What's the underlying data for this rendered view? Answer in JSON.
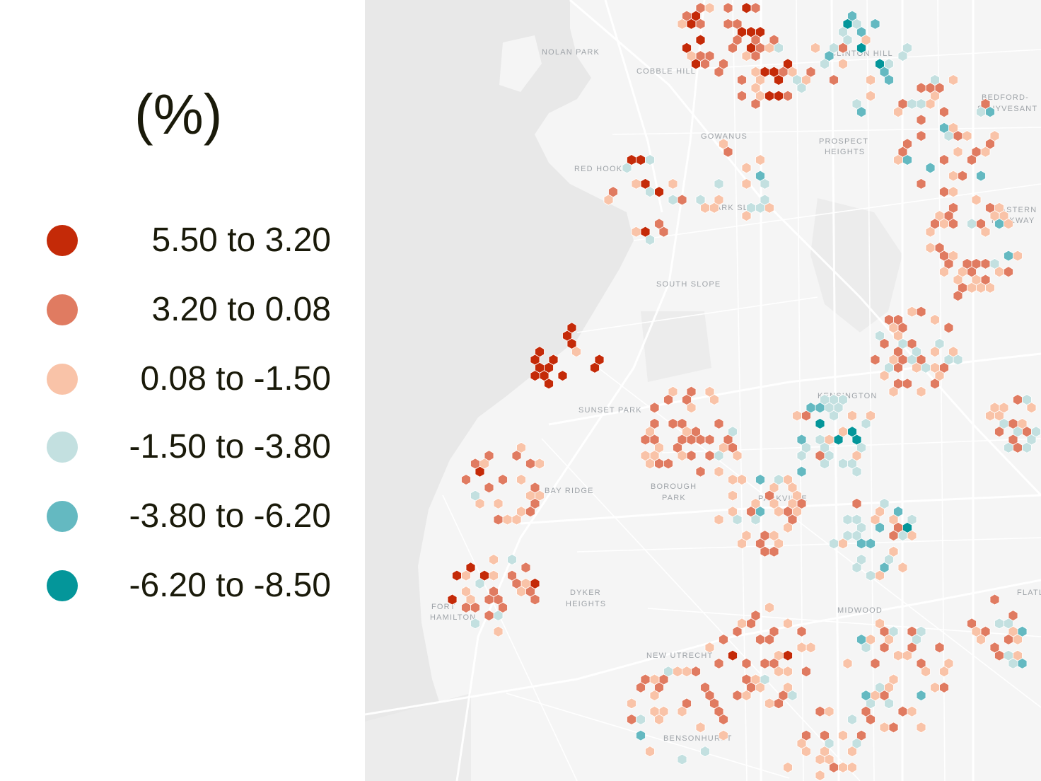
{
  "legend": {
    "title": "(%)",
    "items": [
      {
        "label": "5.50 to 3.20",
        "color": "#c42a08"
      },
      {
        "label": "3.20 to 0.08",
        "color": "#e07b61"
      },
      {
        "label": "0.08 to -1.50",
        "color": "#f9c3a8"
      },
      {
        "label": "-1.50 to -3.80",
        "color": "#c3e0e0"
      },
      {
        "label": "-3.80 to -6.20",
        "color": "#64b9c1"
      },
      {
        "label": "-6.20 to -8.50",
        "color": "#04969a"
      }
    ]
  },
  "map": {
    "water_color": "#e8e8e8",
    "land_color": "#f5f5f5",
    "road_color": "#ffffff",
    "place_labels": [
      "NOLAN PARK",
      "COBBLE HILL",
      "CLINTON HILL",
      "BEDFORD-",
      "STUYVESANT",
      "GOWANUS",
      "PROSPECT",
      "HEIGHTS",
      "RED HOOK",
      "PARK SLOPE",
      "EASTERN",
      "PARKWAY",
      "SOUTH SLOPE",
      "KENSINGTON",
      "SUNSET PARK",
      "BOROUGH",
      "PARK",
      "PARKVILLE",
      "BAY RIDGE",
      "DYKER",
      "HEIGHTS",
      "FORT",
      "HAMILTON",
      "MIDWOOD",
      "FLATLANDS",
      "NEW UTRECHT",
      "BENSONHURST"
    ]
  }
}
